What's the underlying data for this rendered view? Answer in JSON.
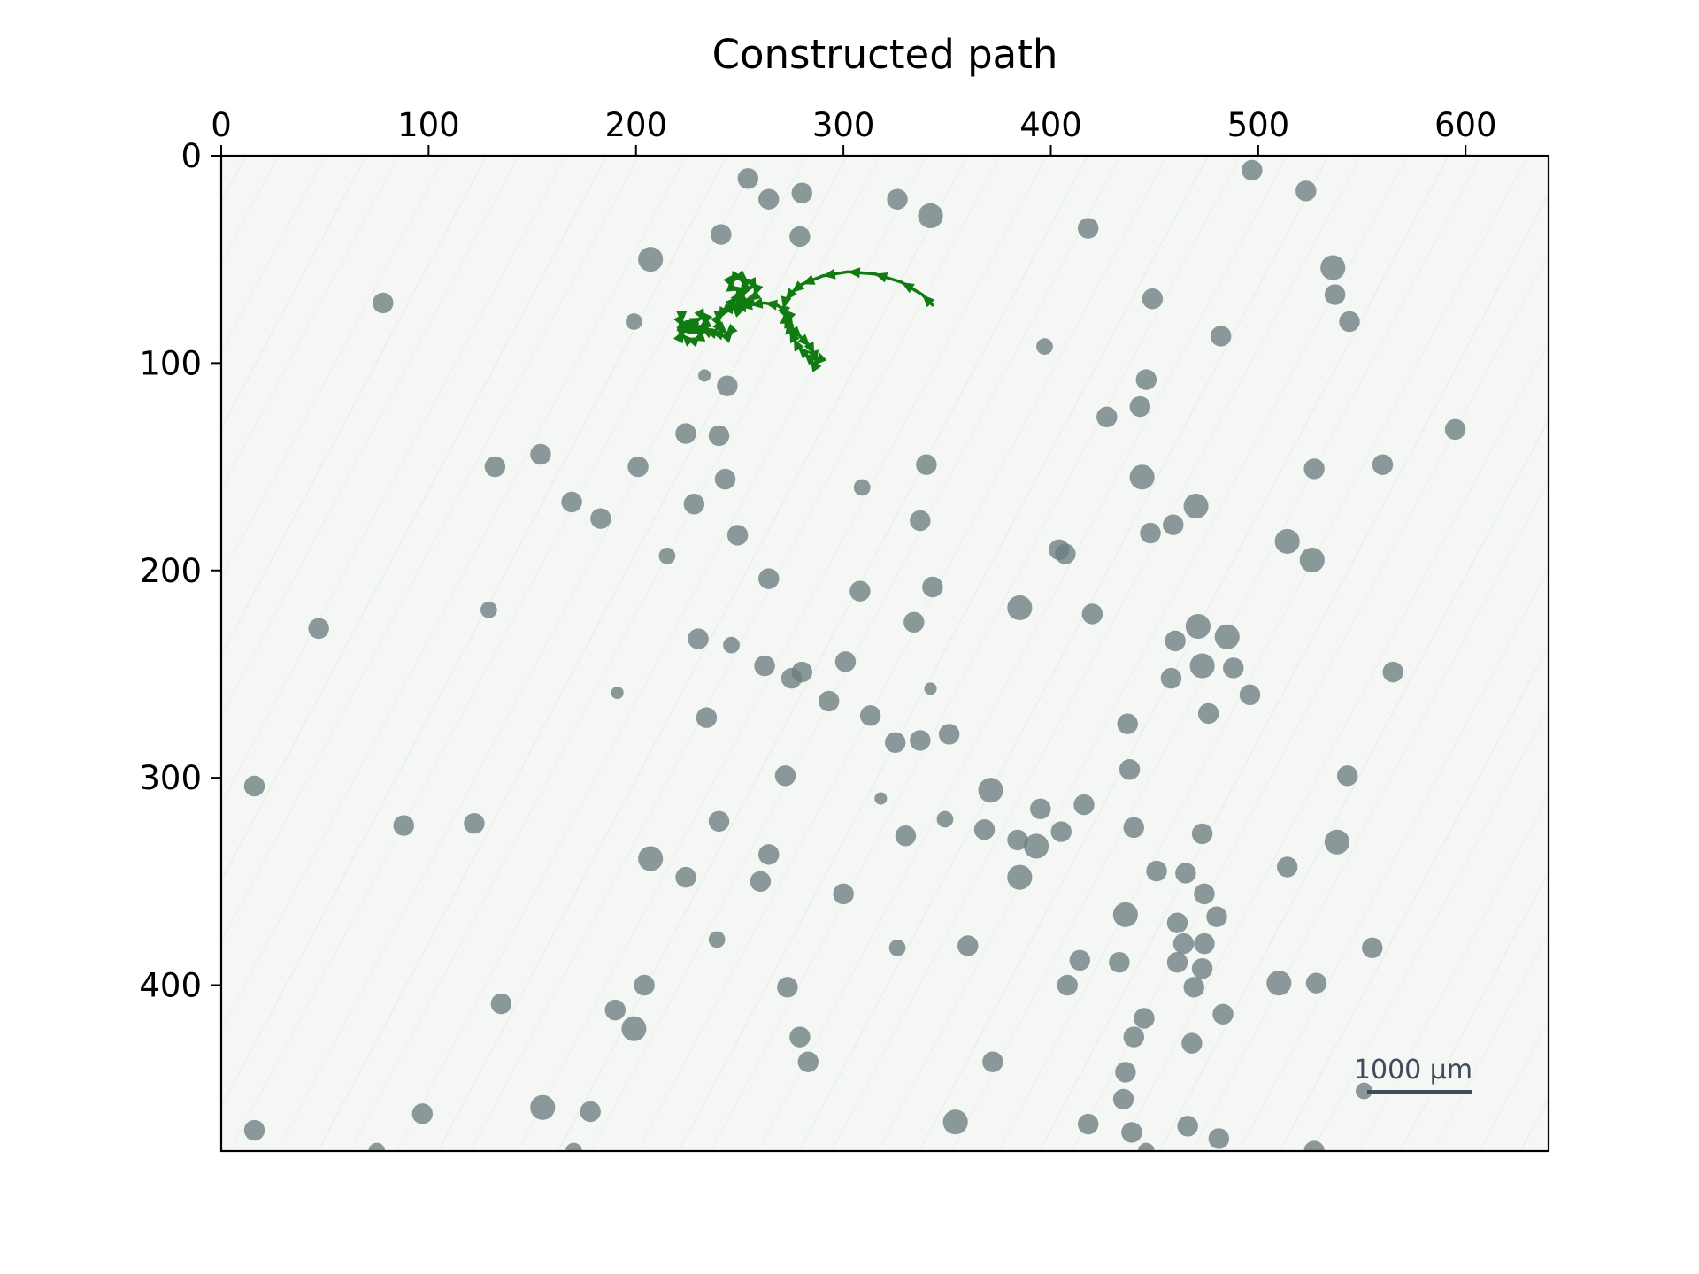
{
  "chart_data": {
    "type": "image-overlay",
    "title": "Constructed path",
    "xlabel": "",
    "ylabel": "",
    "xlim": [
      0,
      640
    ],
    "ylim": [
      480,
      0
    ],
    "x_ticks": [
      0,
      100,
      200,
      300,
      400,
      500,
      600
    ],
    "y_ticks": [
      0,
      100,
      200,
      300,
      400
    ],
    "x_axis_position": "top",
    "grid": false,
    "scale_bar_label": "1000 µm",
    "path_color": "#117a11",
    "cell_color": "#6b7d80",
    "background_color": "#f4f7f4",
    "path": {
      "name": "",
      "x": [
        343,
        338,
        328,
        315,
        302,
        290,
        280,
        275,
        272,
        271,
        273,
        276,
        280,
        284,
        286,
        287,
        286,
        284,
        281,
        278,
        276,
        274,
        273,
        272,
        272,
        271,
        268,
        262,
        255,
        250,
        247,
        246,
        247,
        249,
        251,
        252,
        251,
        249,
        247,
        246,
        247,
        250,
        254,
        257,
        258,
        257,
        254,
        251,
        249,
        248,
        246,
        243,
        241,
        240,
        240,
        241,
        243,
        244,
        243,
        240,
        236,
        233,
        231,
        229,
        228,
        228,
        230,
        232,
        233,
        232,
        230,
        227,
        224,
        222,
        222,
        223,
        226,
        229,
        231,
        230,
        227,
        224,
        222,
        223,
        226,
        229
      ],
      "y": [
        72,
        67,
        61,
        57,
        56,
        58,
        62,
        66,
        70,
        74,
        79,
        84,
        88,
        92,
        96,
        100,
        101,
        98,
        95,
        92,
        88,
        84,
        80,
        77,
        75,
        74,
        72,
        71,
        72,
        73,
        73,
        72,
        70,
        68,
        65,
        62,
        60,
        59,
        60,
        62,
        64,
        65,
        64,
        63,
        65,
        68,
        70,
        71,
        71,
        72,
        73,
        75,
        77,
        79,
        81,
        83,
        85,
        86,
        87,
        86,
        85,
        84,
        83,
        83,
        82,
        80,
        79,
        78,
        80,
        82,
        83,
        82,
        81,
        80,
        81,
        83,
        84,
        85,
        86,
        88,
        89,
        88,
        86,
        84,
        83,
        84
      ]
    },
    "cells": [
      [
        254,
        11,
        5
      ],
      [
        264,
        21,
        5
      ],
      [
        280,
        18,
        5
      ],
      [
        326,
        21,
        5
      ],
      [
        342,
        29,
        6
      ],
      [
        497,
        7,
        5
      ],
      [
        523,
        17,
        5
      ],
      [
        418,
        35,
        5
      ],
      [
        241,
        38,
        5
      ],
      [
        279,
        39,
        5
      ],
      [
        207,
        50,
        6
      ],
      [
        536,
        54,
        6
      ],
      [
        537,
        67,
        5
      ],
      [
        449,
        69,
        5
      ],
      [
        544,
        80,
        5
      ],
      [
        78,
        71,
        5
      ],
      [
        482,
        87,
        5
      ],
      [
        199,
        80,
        4
      ],
      [
        397,
        92,
        4
      ],
      [
        446,
        108,
        5
      ],
      [
        244,
        111,
        5
      ],
      [
        233,
        106,
        3
      ],
      [
        427,
        126,
        5
      ],
      [
        443,
        121,
        5
      ],
      [
        224,
        134,
        5
      ],
      [
        240,
        135,
        5
      ],
      [
        595,
        132,
        5
      ],
      [
        132,
        150,
        5
      ],
      [
        154,
        144,
        5
      ],
      [
        201,
        150,
        5
      ],
      [
        340,
        149,
        5
      ],
      [
        444,
        155,
        6
      ],
      [
        527,
        151,
        5
      ],
      [
        560,
        149,
        5
      ],
      [
        243,
        156,
        5
      ],
      [
        309,
        160,
        4
      ],
      [
        169,
        167,
        5
      ],
      [
        183,
        175,
        5
      ],
      [
        228,
        168,
        5
      ],
      [
        470,
        169,
        6
      ],
      [
        337,
        176,
        5
      ],
      [
        459,
        178,
        5
      ],
      [
        448,
        182,
        5
      ],
      [
        249,
        183,
        5
      ],
      [
        514,
        186,
        6
      ],
      [
        526,
        195,
        6
      ],
      [
        404,
        190,
        5
      ],
      [
        407,
        192,
        5
      ],
      [
        215,
        193,
        4
      ],
      [
        264,
        204,
        5
      ],
      [
        308,
        210,
        5
      ],
      [
        343,
        208,
        5
      ],
      [
        129,
        219,
        4
      ],
      [
        385,
        218,
        6
      ],
      [
        47,
        228,
        5
      ],
      [
        334,
        225,
        5
      ],
      [
        420,
        221,
        5
      ],
      [
        471,
        227,
        6
      ],
      [
        460,
        234,
        5
      ],
      [
        485,
        232,
        6
      ],
      [
        230,
        233,
        5
      ],
      [
        246,
        236,
        4
      ],
      [
        473,
        246,
        6
      ],
      [
        458,
        252,
        5
      ],
      [
        488,
        247,
        5
      ],
      [
        262,
        246,
        5
      ],
      [
        280,
        249,
        5
      ],
      [
        301,
        244,
        5
      ],
      [
        275,
        252,
        5
      ],
      [
        565,
        249,
        5
      ],
      [
        496,
        260,
        5
      ],
      [
        342,
        257,
        3
      ],
      [
        191,
        259,
        3
      ],
      [
        293,
        263,
        5
      ],
      [
        313,
        270,
        5
      ],
      [
        234,
        271,
        5
      ],
      [
        476,
        269,
        5
      ],
      [
        437,
        274,
        5
      ],
      [
        325,
        283,
        5
      ],
      [
        337,
        282,
        5
      ],
      [
        351,
        279,
        5
      ],
      [
        438,
        296,
        5
      ],
      [
        272,
        299,
        5
      ],
      [
        16,
        304,
        5
      ],
      [
        318,
        310,
        3
      ],
      [
        371,
        306,
        6
      ],
      [
        395,
        315,
        5
      ],
      [
        416,
        313,
        5
      ],
      [
        368,
        325,
        5
      ],
      [
        384,
        330,
        5
      ],
      [
        393,
        333,
        6
      ],
      [
        405,
        326,
        5
      ],
      [
        88,
        323,
        5
      ],
      [
        122,
        322,
        5
      ],
      [
        240,
        321,
        5
      ],
      [
        349,
        320,
        4
      ],
      [
        330,
        328,
        5
      ],
      [
        440,
        324,
        5
      ],
      [
        473,
        327,
        5
      ],
      [
        543,
        299,
        5
      ],
      [
        538,
        331,
        6
      ],
      [
        264,
        337,
        5
      ],
      [
        207,
        339,
        6
      ],
      [
        514,
        343,
        5
      ],
      [
        224,
        348,
        5
      ],
      [
        260,
        350,
        5
      ],
      [
        385,
        348,
        6
      ],
      [
        451,
        345,
        5
      ],
      [
        465,
        346,
        5
      ],
      [
        474,
        356,
        5
      ],
      [
        300,
        356,
        5
      ],
      [
        480,
        367,
        5
      ],
      [
        436,
        366,
        6
      ],
      [
        461,
        370,
        5
      ],
      [
        464,
        380,
        5
      ],
      [
        474,
        380,
        5
      ],
      [
        239,
        378,
        4
      ],
      [
        326,
        382,
        4
      ],
      [
        360,
        381,
        5
      ],
      [
        555,
        382,
        5
      ],
      [
        414,
        388,
        5
      ],
      [
        433,
        389,
        5
      ],
      [
        461,
        389,
        5
      ],
      [
        473,
        392,
        5
      ],
      [
        408,
        400,
        5
      ],
      [
        204,
        400,
        5
      ],
      [
        273,
        401,
        5
      ],
      [
        469,
        401,
        5
      ],
      [
        510,
        399,
        6
      ],
      [
        528,
        399,
        5
      ],
      [
        135,
        409,
        5
      ],
      [
        190,
        412,
        5
      ],
      [
        199,
        421,
        6
      ],
      [
        445,
        416,
        5
      ],
      [
        483,
        414,
        5
      ],
      [
        440,
        425,
        5
      ],
      [
        279,
        425,
        5
      ],
      [
        468,
        428,
        5
      ],
      [
        436,
        442,
        5
      ],
      [
        283,
        437,
        5
      ],
      [
        372,
        437,
        5
      ],
      [
        551,
        451,
        4
      ],
      [
        435,
        455,
        5
      ],
      [
        155,
        459,
        6
      ],
      [
        178,
        461,
        5
      ],
      [
        97,
        462,
        5
      ],
      [
        354,
        466,
        6
      ],
      [
        418,
        467,
        5
      ],
      [
        439,
        471,
        5
      ],
      [
        466,
        468,
        5
      ],
      [
        481,
        474,
        5
      ],
      [
        16,
        470,
        5
      ],
      [
        527,
        480,
        5
      ],
      [
        170,
        480,
        4
      ],
      [
        75,
        480,
        4
      ],
      [
        446,
        480,
        4
      ]
    ]
  }
}
